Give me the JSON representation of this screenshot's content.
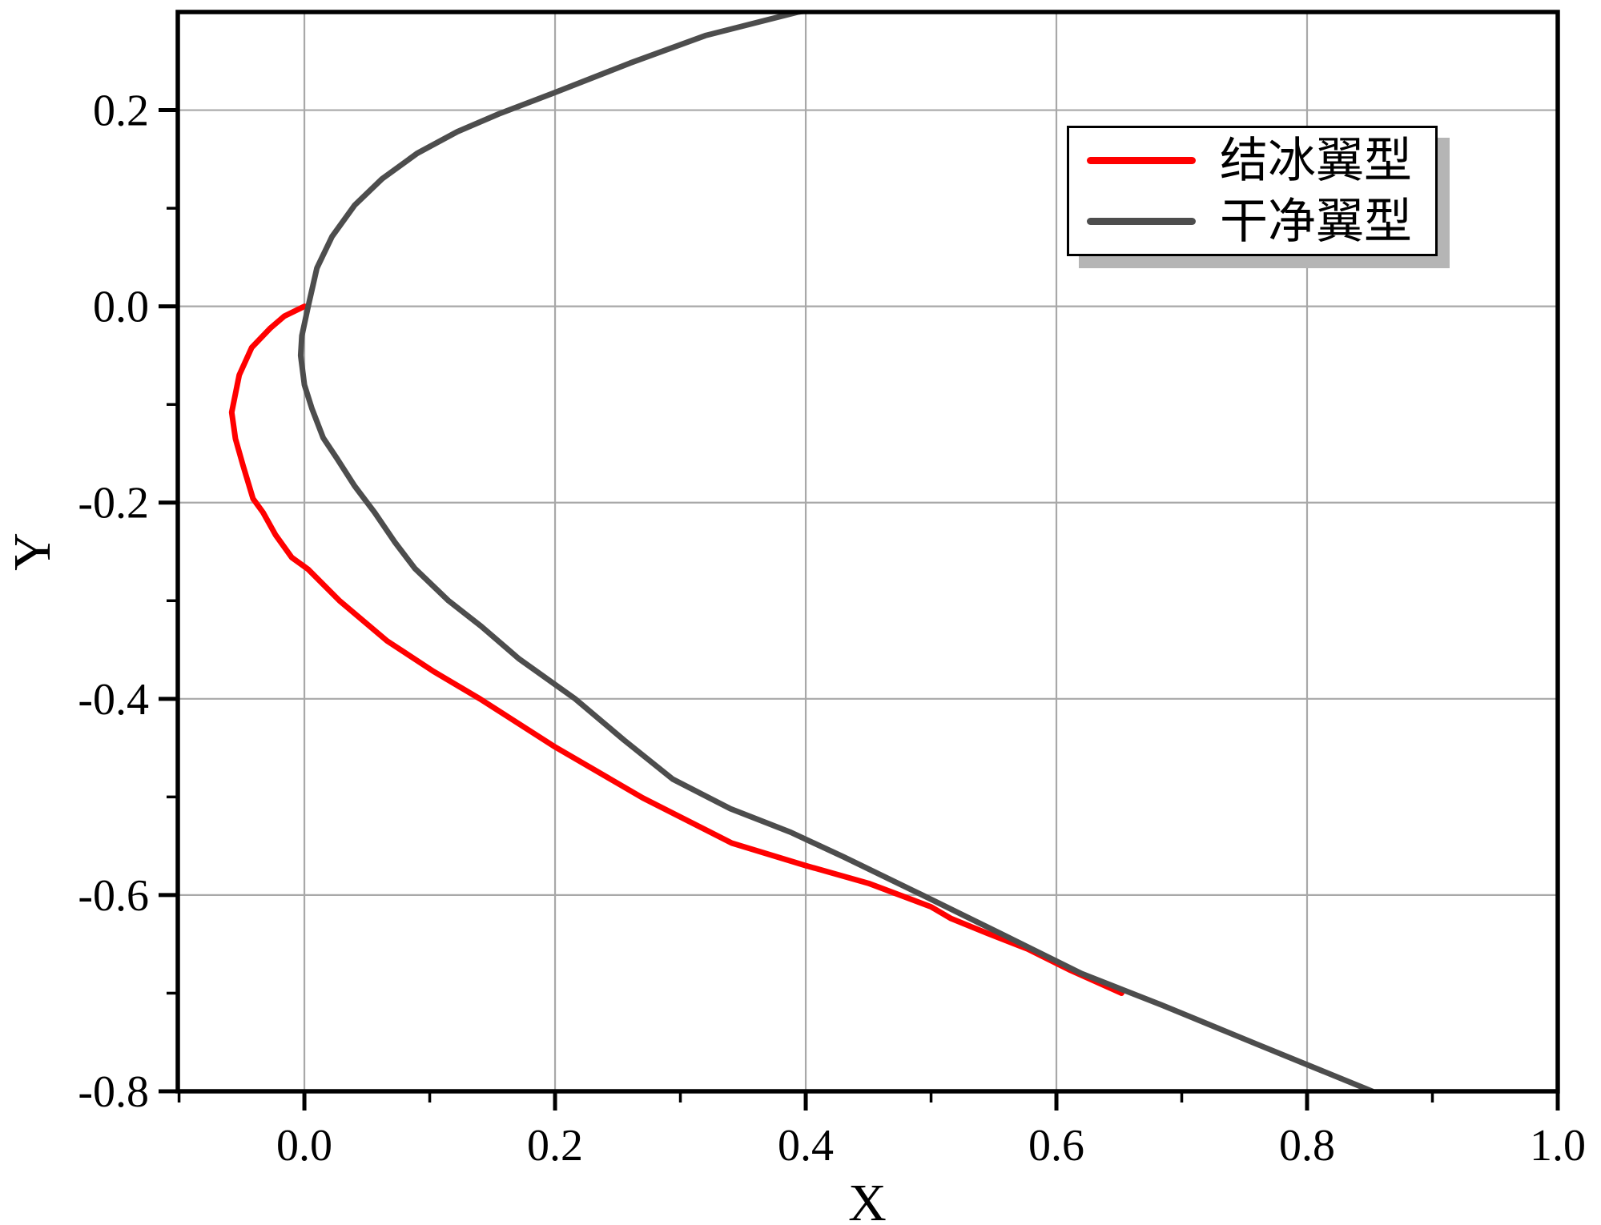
{
  "figure": {
    "background": "#ffffff"
  },
  "legend": {
    "items": [
      {
        "label": "结冰翼型",
        "color": "#ff0000"
      },
      {
        "label": "干净翼型",
        "color": "#4d4d4d"
      }
    ]
  },
  "chart_data": {
    "type": "line",
    "xlabel": "X",
    "ylabel": "Y",
    "xlim": [
      -0.101,
      1.0
    ],
    "ylim": [
      -0.8,
      0.3
    ],
    "grid": true,
    "grid_color": "#a8a8a8",
    "legend_position": "upper right",
    "x_major_ticks": [
      {
        "v": 0.0,
        "label": "0.0"
      },
      {
        "v": 0.2,
        "label": "0.2"
      },
      {
        "v": 0.4,
        "label": "0.4"
      },
      {
        "v": 0.6,
        "label": "0.6"
      },
      {
        "v": 0.8,
        "label": "0.8"
      },
      {
        "v": 1.0,
        "label": "1.0"
      }
    ],
    "x_minor_ticks": [
      -0.1,
      0.1,
      0.3,
      0.5,
      0.7,
      0.9
    ],
    "y_major_ticks": [
      {
        "v": 0.2,
        "label": "0.2"
      },
      {
        "v": 0.0,
        "label": "0.0"
      },
      {
        "v": -0.2,
        "label": "-0.2"
      },
      {
        "v": -0.4,
        "label": "-0.4"
      },
      {
        "v": -0.6,
        "label": "-0.6"
      },
      {
        "v": -0.8,
        "label": "-0.8"
      }
    ],
    "y_minor_ticks": [
      0.1,
      -0.1,
      -0.3,
      -0.5,
      -0.7
    ],
    "series": [
      {
        "name": "结冰翼型",
        "color": "#ff0000",
        "width": 7,
        "points": [
          [
            0.0,
            0.0
          ],
          [
            -0.016,
            -0.01
          ],
          [
            -0.027,
            -0.022
          ],
          [
            -0.042,
            -0.042
          ],
          [
            -0.052,
            -0.07
          ],
          [
            -0.058,
            -0.108
          ],
          [
            -0.055,
            -0.135
          ],
          [
            -0.049,
            -0.162
          ],
          [
            -0.041,
            -0.196
          ],
          [
            -0.033,
            -0.21
          ],
          [
            -0.023,
            -0.233
          ],
          [
            -0.01,
            -0.256
          ],
          [
            0.003,
            -0.268
          ],
          [
            0.028,
            -0.3
          ],
          [
            0.066,
            -0.341
          ],
          [
            0.103,
            -0.372
          ],
          [
            0.14,
            -0.4
          ],
          [
            0.2,
            -0.449
          ],
          [
            0.27,
            -0.501
          ],
          [
            0.341,
            -0.547
          ],
          [
            0.4,
            -0.57
          ],
          [
            0.45,
            -0.588
          ],
          [
            0.5,
            -0.612
          ],
          [
            0.516,
            -0.624
          ],
          [
            0.545,
            -0.639
          ],
          [
            0.577,
            -0.655
          ],
          [
            0.61,
            -0.676
          ],
          [
            0.652,
            -0.7
          ]
        ]
      },
      {
        "name": "干净翼型",
        "color": "#4d4d4d",
        "width": 7,
        "points": [
          [
            0.46,
            0.3135
          ],
          [
            0.394,
            0.3
          ],
          [
            0.32,
            0.276
          ],
          [
            0.26,
            0.248
          ],
          [
            0.2,
            0.218
          ],
          [
            0.155,
            0.196
          ],
          [
            0.122,
            0.178
          ],
          [
            0.09,
            0.156
          ],
          [
            0.062,
            0.13
          ],
          [
            0.04,
            0.103
          ],
          [
            0.022,
            0.071
          ],
          [
            0.01,
            0.039
          ],
          [
            0.003,
            0.0
          ],
          [
            -0.002,
            -0.03
          ],
          [
            -0.003,
            -0.05
          ],
          [
            0.0,
            -0.08
          ],
          [
            0.006,
            -0.104
          ],
          [
            0.015,
            -0.134
          ],
          [
            0.026,
            -0.155
          ],
          [
            0.04,
            -0.183
          ],
          [
            0.056,
            -0.21
          ],
          [
            0.072,
            -0.24
          ],
          [
            0.088,
            -0.267
          ],
          [
            0.115,
            -0.3
          ],
          [
            0.141,
            -0.326
          ],
          [
            0.171,
            -0.359
          ],
          [
            0.216,
            -0.4
          ],
          [
            0.255,
            -0.442
          ],
          [
            0.294,
            -0.482
          ],
          [
            0.34,
            -0.512
          ],
          [
            0.388,
            -0.536
          ],
          [
            0.43,
            -0.561
          ],
          [
            0.493,
            -0.6
          ],
          [
            0.56,
            -0.642
          ],
          [
            0.62,
            -0.68
          ],
          [
            0.684,
            -0.712
          ],
          [
            0.76,
            -0.752
          ],
          [
            0.852,
            -0.8
          ]
        ]
      }
    ]
  }
}
